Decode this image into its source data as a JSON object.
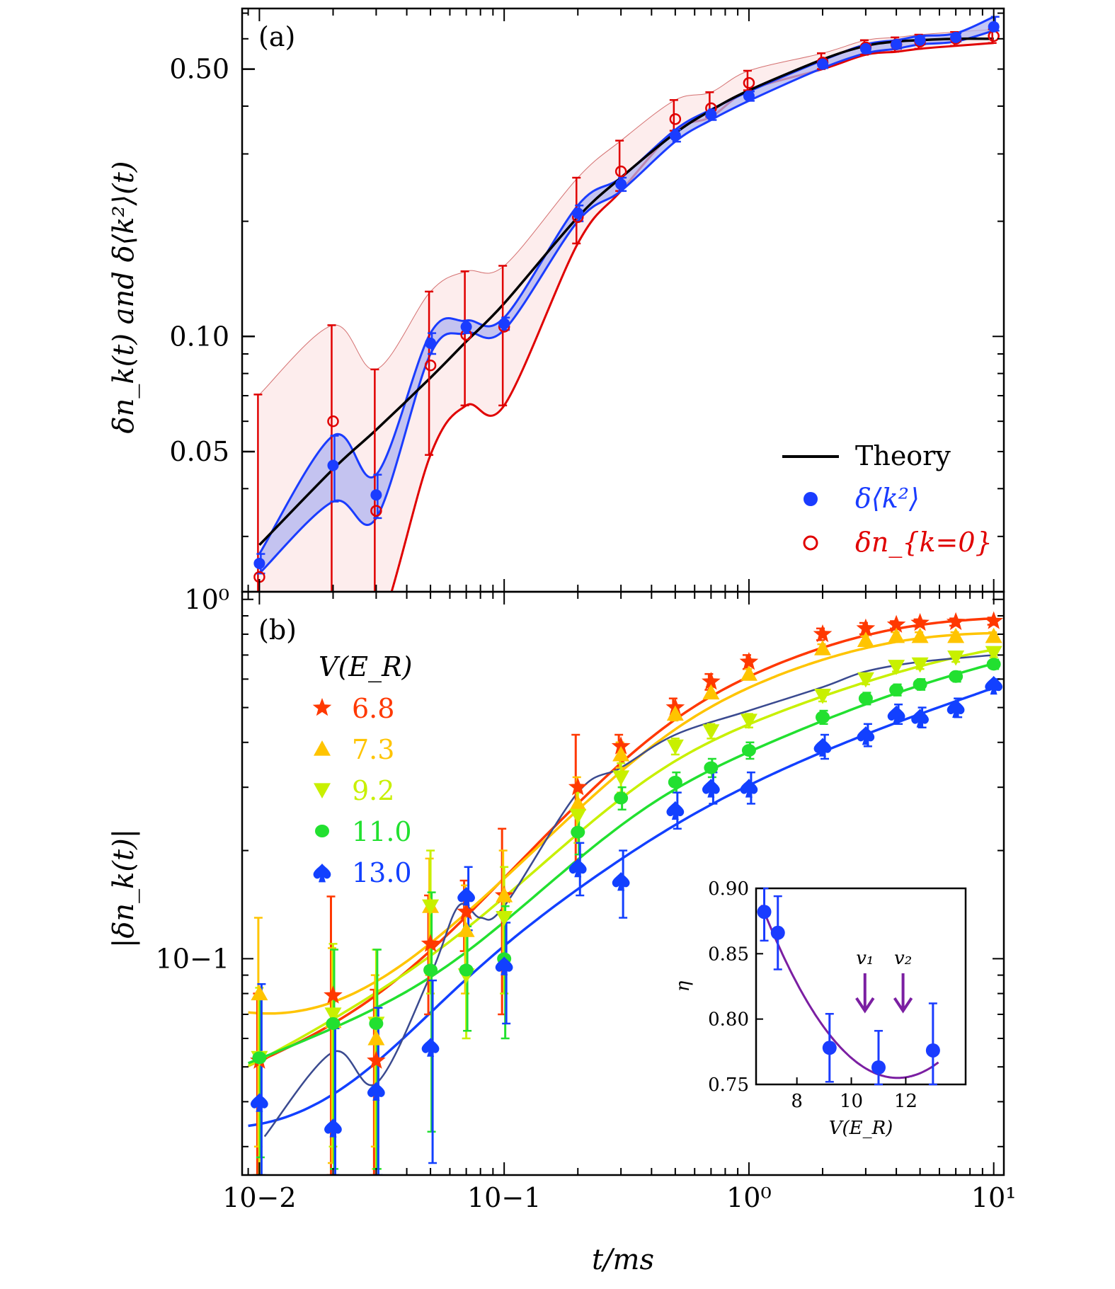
{
  "figure": {
    "xlabel": "t/ms",
    "shared_x_ticks": [
      "10−2",
      "10−1",
      "10⁰",
      "10¹"
    ]
  },
  "chart_data": [
    {
      "type": "scatter",
      "panel": "(a)",
      "ylabel": "δn_k(t) and δ⟨k²⟩(t)",
      "xlabel": "t/ms",
      "x_scale": "log",
      "y_scale": "log",
      "xlim": [
        0.0085,
        11
      ],
      "ylim": [
        0.0215,
        0.72
      ],
      "y_ticks": [
        0.05,
        0.1,
        0.5
      ],
      "y_tick_labels": [
        "0.05",
        "0.10",
        "0.50"
      ],
      "legend_placement": "bottom-right",
      "legend": [
        "Theory",
        "δ⟨k²⟩",
        "δn_{k=0}"
      ],
      "theory": {
        "name": "Theory",
        "color": "#000000",
        "x": [
          0.01,
          0.02,
          0.03,
          0.05,
          0.07,
          0.1,
          0.2,
          0.3,
          0.5,
          0.7,
          1.0,
          2,
          3,
          4,
          5,
          7,
          10
        ],
        "y": [
          0.0285,
          0.045,
          0.057,
          0.078,
          0.097,
          0.122,
          0.205,
          0.26,
          0.34,
          0.39,
          0.44,
          0.53,
          0.575,
          0.59,
          0.595,
          0.6,
          0.6
        ]
      },
      "series": [
        {
          "name": "δ⟨k²⟩",
          "color": "#1a3cff",
          "marker": "filled-circle",
          "x": [
            0.01,
            0.02,
            0.03,
            0.05,
            0.07,
            0.1,
            0.2,
            0.3,
            0.5,
            0.7,
            1.0,
            2,
            3,
            4,
            5,
            7,
            10
          ],
          "y": [
            0.0255,
            0.046,
            0.0385,
            0.096,
            0.106,
            0.108,
            0.21,
            0.25,
            0.335,
            0.38,
            0.425,
            0.515,
            0.565,
            0.58,
            0.595,
            0.605,
            0.645
          ],
          "err_lo": [
            0.0015,
            0.009,
            0.005,
            0.006,
            0.004,
            0.004,
            0.01,
            0.01,
            0.012,
            0.012,
            0.012,
            0.012,
            0.015,
            0.015,
            0.015,
            0.015,
            0.015
          ],
          "err_hi": [
            0.0015,
            0.009,
            0.005,
            0.006,
            0.004,
            0.004,
            0.01,
            0.01,
            0.012,
            0.012,
            0.012,
            0.012,
            0.015,
            0.015,
            0.015,
            0.015,
            0.04
          ]
        },
        {
          "name": "δn_{k=0}",
          "color": "#e00000",
          "marker": "open-circle",
          "x": [
            0.01,
            0.02,
            0.03,
            0.05,
            0.07,
            0.1,
            0.2,
            0.3,
            0.5,
            0.7,
            1.0,
            2,
            3,
            4,
            5,
            7,
            10
          ],
          "y": [
            0.0235,
            0.06,
            0.035,
            0.084,
            0.101,
            0.106,
            0.205,
            0.27,
            0.37,
            0.395,
            0.46,
            0.52,
            0.57,
            0.58,
            0.59,
            0.6,
            0.61
          ],
          "err_lo": [
            0.01,
            0.05,
            0.03,
            0.035,
            0.035,
            0.04,
            0.03,
            0.03,
            0.025,
            0.02,
            0.02,
            0.02,
            0.025,
            0.025,
            0.025,
            0.025,
            0.025
          ],
          "err_hi": [
            0.047,
            0.047,
            0.047,
            0.047,
            0.047,
            0.047,
            0.055,
            0.055,
            0.045,
            0.04,
            0.035,
            0.03,
            0.025,
            0.025,
            0.025,
            0.025,
            0.025
          ]
        }
      ]
    },
    {
      "type": "scatter",
      "panel": "(b)",
      "ylabel": "|δn_k(t)|",
      "xlabel": "t/ms",
      "x_scale": "log",
      "y_scale": "log",
      "xlim": [
        0.0085,
        11
      ],
      "ylim": [
        0.025,
        1.05
      ],
      "y_ticks": [
        0.1,
        1.0
      ],
      "y_tick_labels": [
        "10−1",
        "10⁰"
      ],
      "legend_placement": "top-left",
      "legend_title": "V(E_R)",
      "x": [
        0.01,
        0.02,
        0.03,
        0.05,
        0.07,
        0.1,
        0.2,
        0.3,
        0.5,
        0.7,
        1.0,
        2,
        3,
        4,
        5,
        7,
        10
      ],
      "series": [
        {
          "name": "6.8",
          "color": "#ff3800",
          "marker": "star",
          "y": [
            0.052,
            0.079,
            0.052,
            0.11,
            0.135,
            0.15,
            0.3,
            0.39,
            0.5,
            0.59,
            0.67,
            0.8,
            0.83,
            0.85,
            0.86,
            0.865,
            0.87
          ],
          "err": [
            0.028,
            0.07,
            0.03,
            0.04,
            0.03,
            0.08,
            0.12,
            0.03,
            0.03,
            0.03,
            0.03,
            0.03,
            0.03,
            0.02,
            0.02,
            0.02,
            0.02
          ]
        },
        {
          "name": "7.3",
          "color": "#ffc400",
          "marker": "triangle-up",
          "y": [
            0.08,
            0.067,
            0.06,
            0.14,
            0.12,
            0.15,
            0.27,
            0.37,
            0.48,
            0.55,
            0.62,
            0.73,
            0.77,
            0.79,
            0.79,
            0.79,
            0.79
          ],
          "err": [
            0.05,
            0.04,
            0.03,
            0.05,
            0.04,
            0.05,
            0.05,
            0.03,
            0.02,
            0.02,
            0.02,
            0.02,
            0.02,
            0.02,
            0.02,
            0.02,
            0.02
          ]
        },
        {
          "name": "9.2",
          "color": "#c8f000",
          "marker": "triangle-down",
          "y": [
            0.053,
            0.07,
            0.066,
            0.14,
            0.09,
            0.13,
            0.25,
            0.32,
            0.39,
            0.43,
            0.46,
            0.54,
            0.6,
            0.65,
            0.66,
            0.69,
            0.71
          ],
          "err": [
            0.03,
            0.04,
            0.04,
            0.06,
            0.03,
            0.05,
            0.04,
            0.03,
            0.02,
            0.02,
            0.02,
            0.02,
            0.02,
            0.02,
            0.02,
            0.02,
            0.02
          ]
        },
        {
          "name": "11.0",
          "color": "#22e030",
          "marker": "filled-circle",
          "y": [
            0.053,
            0.066,
            0.066,
            0.093,
            0.093,
            0.1,
            0.225,
            0.28,
            0.31,
            0.34,
            0.38,
            0.47,
            0.53,
            0.56,
            0.58,
            0.61,
            0.66
          ],
          "err": [
            0.025,
            0.04,
            0.04,
            0.06,
            0.03,
            0.04,
            0.03,
            0.02,
            0.02,
            0.02,
            0.02,
            0.02,
            0.02,
            0.02,
            0.02,
            0.02,
            0.02
          ]
        },
        {
          "name": "13.0",
          "color": "#1240ff",
          "marker": "spade",
          "y": [
            0.04,
            0.034,
            0.043,
            0.057,
            0.15,
            0.096,
            0.18,
            0.165,
            0.26,
            0.3,
            0.3,
            0.39,
            0.42,
            0.48,
            0.47,
            0.5,
            0.58
          ],
          "err": [
            0.045,
            0.03,
            0.03,
            0.03,
            0.03,
            0.03,
            0.03,
            0.035,
            0.03,
            0.03,
            0.03,
            0.03,
            0.03,
            0.03,
            0.03,
            0.03,
            0.02
          ]
        }
      ],
      "inset": {
        "type": "scatter",
        "xlabel": "V(E_R)",
        "ylabel": "η",
        "xlim": [
          6.5,
          14.2
        ],
        "ylim": [
          0.75,
          0.9
        ],
        "x_ticks": [
          8,
          10,
          12
        ],
        "y_ticks": [
          0.75,
          0.8,
          0.85,
          0.9
        ],
        "y_tick_labels": [
          "0.75",
          "0.80",
          "0.85",
          "0.90"
        ],
        "points": {
          "color": "#1a3cff",
          "x": [
            6.8,
            7.3,
            9.2,
            11.0,
            13.0
          ],
          "y": [
            0.882,
            0.866,
            0.778,
            0.763,
            0.776
          ],
          "err": [
            0.022,
            0.028,
            0.026,
            0.028,
            0.036
          ]
        },
        "fit": {
          "color": "#7b1fa2",
          "vertex_x": 11.7,
          "vertex_y": 0.755
        },
        "annotations": [
          {
            "label": "v₁",
            "x": 10.5,
            "color": "#7b1fa2"
          },
          {
            "label": "v₂",
            "x": 11.9,
            "color": "#7b1fa2"
          }
        ]
      }
    }
  ]
}
